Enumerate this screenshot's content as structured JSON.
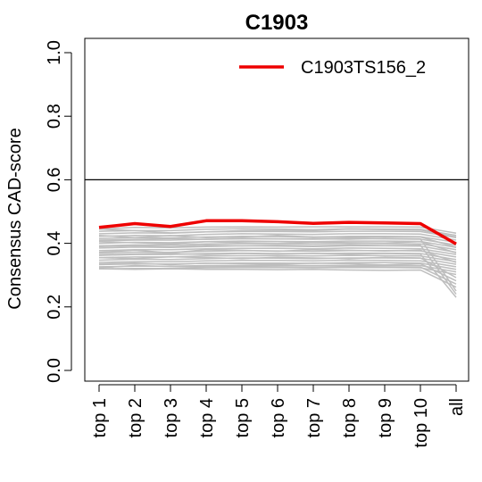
{
  "chart_data": {
    "type": "line",
    "title": "C1903",
    "xlabel": "",
    "ylabel": "Consensus CAD-score",
    "categories": [
      "top 1",
      "top 2",
      "top 3",
      "top 4",
      "top 5",
      "top 6",
      "top 7",
      "top 8",
      "top 9",
      "top 10",
      "all"
    ],
    "ylim": [
      0,
      1
    ],
    "yticks": [
      "0.0",
      "0.2",
      "0.4",
      "0.6",
      "0.8",
      "1.0"
    ],
    "reference_line": 0.6,
    "legend": {
      "position": "top-right",
      "entries": [
        "C1903TS156_2"
      ]
    },
    "highlight_series": {
      "name": "C1903TS156_2",
      "color": "#ee0000",
      "values": [
        0.45,
        0.462,
        0.453,
        0.471,
        0.471,
        0.468,
        0.463,
        0.466,
        0.464,
        0.462,
        0.398
      ]
    },
    "background_series_color": "#bebebe",
    "background_series": [
      [
        0.445,
        0.45,
        0.449,
        0.451,
        0.452,
        0.451,
        0.452,
        0.452,
        0.452,
        0.451,
        0.432
      ],
      [
        0.438,
        0.44,
        0.44,
        0.444,
        0.446,
        0.445,
        0.443,
        0.446,
        0.445,
        0.444,
        0.425
      ],
      [
        0.43,
        0.433,
        0.432,
        0.436,
        0.437,
        0.437,
        0.436,
        0.438,
        0.438,
        0.437,
        0.418
      ],
      [
        0.422,
        0.425,
        0.424,
        0.428,
        0.43,
        0.429,
        0.428,
        0.43,
        0.43,
        0.429,
        0.41
      ],
      [
        0.415,
        0.418,
        0.417,
        0.42,
        0.422,
        0.421,
        0.42,
        0.422,
        0.422,
        0.421,
        0.403
      ],
      [
        0.408,
        0.41,
        0.41,
        0.413,
        0.414,
        0.414,
        0.413,
        0.415,
        0.414,
        0.413,
        0.395
      ],
      [
        0.4,
        0.403,
        0.402,
        0.405,
        0.407,
        0.406,
        0.405,
        0.407,
        0.407,
        0.406,
        0.387
      ],
      [
        0.392,
        0.395,
        0.395,
        0.398,
        0.399,
        0.399,
        0.398,
        0.4,
        0.399,
        0.398,
        0.38
      ],
      [
        0.385,
        0.388,
        0.387,
        0.39,
        0.392,
        0.391,
        0.39,
        0.392,
        0.392,
        0.391,
        0.372
      ],
      [
        0.377,
        0.38,
        0.38,
        0.383,
        0.384,
        0.384,
        0.383,
        0.385,
        0.384,
        0.383,
        0.365
      ],
      [
        0.37,
        0.372,
        0.372,
        0.375,
        0.377,
        0.376,
        0.375,
        0.377,
        0.377,
        0.376,
        0.357
      ],
      [
        0.362,
        0.365,
        0.365,
        0.368,
        0.369,
        0.368,
        0.368,
        0.369,
        0.369,
        0.368,
        0.349
      ],
      [
        0.355,
        0.357,
        0.357,
        0.36,
        0.361,
        0.361,
        0.36,
        0.362,
        0.361,
        0.36,
        0.342
      ],
      [
        0.347,
        0.35,
        0.349,
        0.352,
        0.354,
        0.353,
        0.352,
        0.354,
        0.354,
        0.353,
        0.334
      ],
      [
        0.34,
        0.342,
        0.342,
        0.345,
        0.346,
        0.346,
        0.345,
        0.347,
        0.346,
        0.345,
        0.326
      ],
      [
        0.333,
        0.335,
        0.335,
        0.337,
        0.338,
        0.338,
        0.337,
        0.339,
        0.339,
        0.338,
        0.318
      ],
      [
        0.326,
        0.328,
        0.328,
        0.33,
        0.331,
        0.331,
        0.33,
        0.331,
        0.331,
        0.33,
        0.31
      ],
      [
        0.32,
        0.321,
        0.321,
        0.323,
        0.324,
        0.324,
        0.323,
        0.324,
        0.324,
        0.323,
        0.302
      ],
      [
        0.445,
        0.44,
        0.433,
        0.436,
        0.44,
        0.441,
        0.44,
        0.445,
        0.443,
        0.442,
        0.42
      ],
      [
        0.425,
        0.418,
        0.425,
        0.418,
        0.42,
        0.425,
        0.42,
        0.418,
        0.421,
        0.42,
        0.388
      ],
      [
        0.405,
        0.402,
        0.398,
        0.405,
        0.402,
        0.4,
        0.404,
        0.402,
        0.401,
        0.405,
        0.37
      ],
      [
        0.372,
        0.378,
        0.37,
        0.38,
        0.378,
        0.375,
        0.38,
        0.378,
        0.376,
        0.378,
        0.34
      ],
      [
        0.355,
        0.352,
        0.358,
        0.355,
        0.352,
        0.356,
        0.354,
        0.352,
        0.356,
        0.354,
        0.292
      ],
      [
        0.335,
        0.338,
        0.333,
        0.338,
        0.336,
        0.334,
        0.338,
        0.336,
        0.332,
        0.336,
        0.282
      ],
      [
        0.323,
        0.33,
        0.327,
        0.326,
        0.327,
        0.326,
        0.325,
        0.327,
        0.326,
        0.325,
        0.272
      ],
      [
        0.32,
        0.318,
        0.32,
        0.318,
        0.318,
        0.317,
        0.318,
        0.316,
        0.315,
        0.316,
        0.262
      ],
      [
        0.41,
        0.412,
        0.415,
        0.412,
        0.416,
        0.414,
        0.415,
        0.413,
        0.416,
        0.414,
        0.25
      ],
      [
        0.39,
        0.392,
        0.39,
        0.394,
        0.392,
        0.394,
        0.392,
        0.395,
        0.393,
        0.394,
        0.24
      ],
      [
        0.365,
        0.366,
        0.368,
        0.365,
        0.368,
        0.366,
        0.368,
        0.366,
        0.368,
        0.366,
        0.23
      ]
    ]
  }
}
